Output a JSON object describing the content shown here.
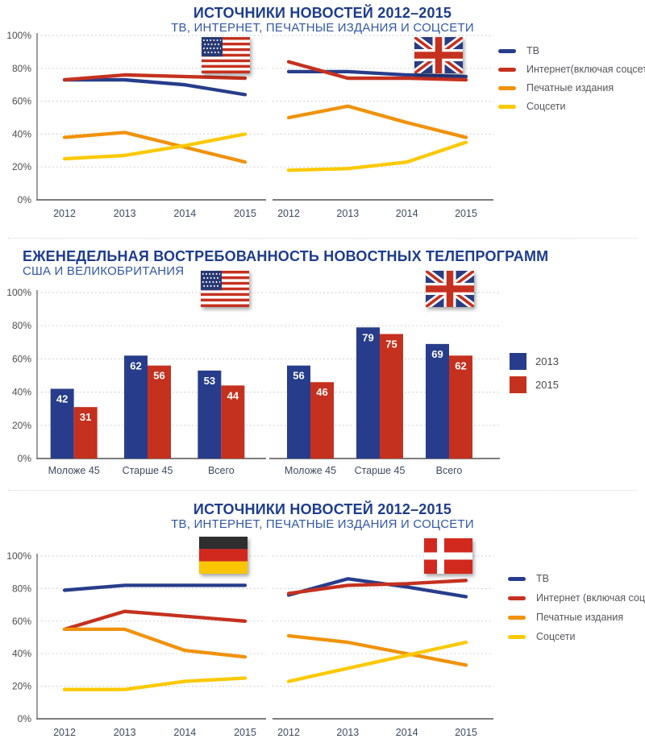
{
  "colors": {
    "tv_blue": "#273d8b",
    "internet_red": "#c5311f",
    "print_orange": "#f0920b",
    "social_yellow": "#fbc900",
    "title_navy": "#1d3c8e",
    "subtitle_blue": "#3157a5"
  },
  "sections": [
    {
      "title": "ИСТОЧНИКИ НОВОСТЕЙ 2012–2015",
      "subtitle": "ТВ, ИНТЕРНЕТ, ПЕЧАТНЫЕ ИЗДАНИЯ И СОЦСЕТИ",
      "flags": [
        {
          "icon": "flag-usa"
        },
        {
          "icon": "flag-uk"
        }
      ],
      "legend": [
        {
          "label": "ТВ",
          "color": "#273d8b"
        },
        {
          "label": "Интернет(включая соцсети)",
          "color": "#c5311f"
        },
        {
          "label": "Печатные издания",
          "color": "#f0920b"
        },
        {
          "label": "Соцсети",
          "color": "#fbc900"
        }
      ]
    },
    {
      "title": "ЕЖЕНЕДЕЛЬНАЯ ВОСТРЕБОВАННОСТЬ НОВОСТНЫХ ТЕЛЕПРОГРАММ",
      "subtitle": "США И ВЕЛИКОБРИТАНИЯ",
      "flags": [
        {
          "icon": "flag-usa"
        },
        {
          "icon": "flag-uk"
        }
      ],
      "legend": [
        {
          "label": "2013",
          "color": "#273d8b"
        },
        {
          "label": "2015",
          "color": "#c5311f"
        }
      ]
    },
    {
      "title": "ИСТОЧНИКИ НОВОСТЕЙ 2012–2015",
      "subtitle": "ТВ, ИНТЕРНЕТ, ПЕЧАТНЫЕ ИЗДАНИЯ И СОЦСЕТИ",
      "flags": [
        {
          "icon": "flag-germany"
        },
        {
          "icon": "flag-denmark"
        }
      ],
      "legend": [
        {
          "label": "ТВ",
          "color": "#273d8b"
        },
        {
          "label": "Интернет (включая соцсети)",
          "color": "#c5311f"
        },
        {
          "label": "Печатные издания",
          "color": "#f0920b"
        },
        {
          "label": "Соцсети",
          "color": "#fbc900"
        }
      ]
    }
  ],
  "chart_data": [
    {
      "id": "usa-news-sources",
      "type": "line",
      "country": "США",
      "x": [
        "2012",
        "2013",
        "2014",
        "2015"
      ],
      "ylim": [
        0,
        100
      ],
      "grid": true,
      "yticks": [
        "0%",
        "20%",
        "40%",
        "60%",
        "80%",
        "100%"
      ],
      "series": [
        {
          "name": "ТВ",
          "color": "#273d8b",
          "values": [
            73,
            73,
            70,
            64
          ]
        },
        {
          "name": "Интернет(включая соцсети)",
          "color": "#c5311f",
          "values": [
            73,
            76,
            75,
            74
          ]
        },
        {
          "name": "Печатные издания",
          "color": "#f0920b",
          "values": [
            38,
            41,
            32,
            23
          ]
        },
        {
          "name": "Соцсети",
          "color": "#fbc900",
          "values": [
            25,
            27,
            33,
            40
          ]
        }
      ]
    },
    {
      "id": "uk-news-sources",
      "type": "line",
      "country": "Великобритания",
      "x": [
        "2012",
        "2013",
        "2014",
        "2015"
      ],
      "ylim": [
        0,
        100
      ],
      "grid": true,
      "yticks": [
        "0%",
        "20%",
        "40%",
        "60%",
        "80%",
        "100%"
      ],
      "series": [
        {
          "name": "ТВ",
          "color": "#273d8b",
          "values": [
            78,
            78,
            76,
            75
          ]
        },
        {
          "name": "Интернет(включая соцсети)",
          "color": "#c5311f",
          "values": [
            84,
            74,
            74,
            73
          ]
        },
        {
          "name": "Печатные издания",
          "color": "#f0920b",
          "values": [
            50,
            57,
            47,
            38
          ]
        },
        {
          "name": "Соцсети",
          "color": "#fbc900",
          "values": [
            18,
            19,
            23,
            35
          ]
        }
      ]
    },
    {
      "id": "usa-weekly-tv-news",
      "type": "bar",
      "country": "США",
      "categories": [
        "Моложе 45",
        "Старше 45",
        "Всего"
      ],
      "ylim": [
        0,
        100
      ],
      "grid": true,
      "yticks": [
        "0%",
        "20%",
        "40%",
        "60%",
        "80%",
        "100%"
      ],
      "series": [
        {
          "name": "2013",
          "color": "#273d8b",
          "values": [
            42,
            62,
            53
          ]
        },
        {
          "name": "2015",
          "color": "#c5311f",
          "values": [
            31,
            56,
            44
          ]
        }
      ]
    },
    {
      "id": "uk-weekly-tv-news",
      "type": "bar",
      "country": "Великобритания",
      "categories": [
        "Моложе 45",
        "Старше 45",
        "Всего"
      ],
      "ylim": [
        0,
        100
      ],
      "grid": true,
      "yticks": [
        "0%",
        "20%",
        "40%",
        "60%",
        "80%",
        "100%"
      ],
      "series": [
        {
          "name": "2013",
          "color": "#273d8b",
          "values": [
            56,
            79,
            69
          ]
        },
        {
          "name": "2015",
          "color": "#c5311f",
          "values": [
            46,
            75,
            62
          ]
        }
      ]
    },
    {
      "id": "germany-news-sources",
      "type": "line",
      "country": "Германия",
      "x": [
        "2012",
        "2013",
        "2014",
        "2015"
      ],
      "ylim": [
        0,
        100
      ],
      "grid": true,
      "yticks": [
        "0%",
        "20%",
        "40%",
        "60%",
        "80%",
        "100%"
      ],
      "series": [
        {
          "name": "ТВ",
          "color": "#273d8b",
          "values": [
            79,
            82,
            82,
            82
          ]
        },
        {
          "name": "Интернет (включая соцсети)",
          "color": "#c5311f",
          "values": [
            55,
            66,
            63,
            60
          ]
        },
        {
          "name": "Печатные издания",
          "color": "#f0920b",
          "values": [
            55,
            55,
            42,
            38
          ]
        },
        {
          "name": "Соцсети",
          "color": "#fbc900",
          "values": [
            18,
            18,
            23,
            25
          ]
        }
      ]
    },
    {
      "id": "denmark-news-sources",
      "type": "line",
      "country": "Дания",
      "x": [
        "2012",
        "2013",
        "2014",
        "2015"
      ],
      "ylim": [
        0,
        100
      ],
      "grid": true,
      "yticks": [
        "0%",
        "20%",
        "40%",
        "60%",
        "80%",
        "100%"
      ],
      "series": [
        {
          "name": "ТВ",
          "color": "#273d8b",
          "values": [
            76,
            86,
            81,
            75
          ]
        },
        {
          "name": "Интернет (включая соцсети)",
          "color": "#c5311f",
          "values": [
            77,
            82,
            83,
            85
          ]
        },
        {
          "name": "Печатные издания",
          "color": "#f0920b",
          "values": [
            51,
            47,
            40,
            33
          ]
        },
        {
          "name": "Соцсети",
          "color": "#fbc900",
          "values": [
            23,
            31,
            39,
            47
          ]
        }
      ]
    }
  ]
}
